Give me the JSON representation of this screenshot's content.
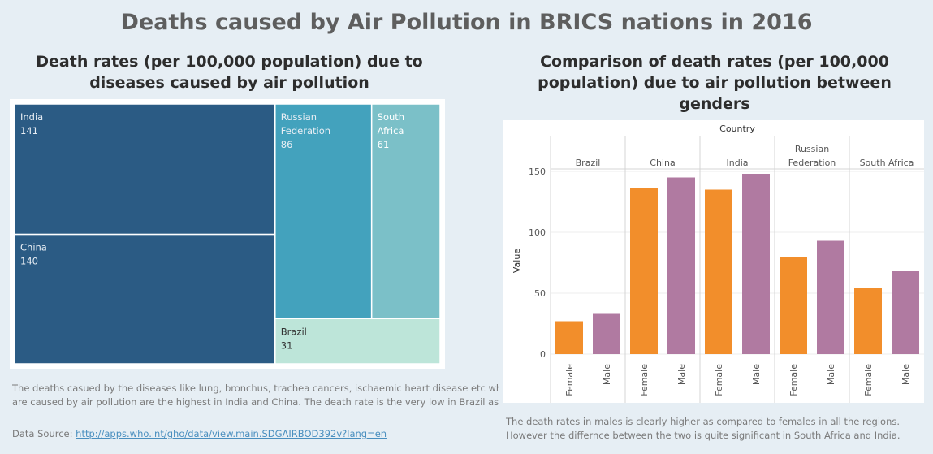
{
  "page": {
    "title": "Deaths caused by Air Pollution in BRICS nations in 2016"
  },
  "left": {
    "title_line1": "Death rates (per 100,000 population) due to",
    "title_line2": "diseases caused by air pollution",
    "note_line1": "The deaths casued by the diseases like lung, bronchus, trachea cancers, ischaemic heart disease etc which",
    "note_line2": "are caused by air pollution are the highest in India and China. The death rate is the very low in Brazil as c..",
    "source_label": "Data Source: ",
    "source_link": "http://apps.who.int/gho/data/view.main.SDGAIRBOD392v?lang=en"
  },
  "right": {
    "title_line1": "Comparison of death rates (per 100,000",
    "title_line2": "population) due to air pollution between",
    "title_line3": "genders",
    "note_line1": "The death rates in males is clearly higher as compared to females in all the regions.",
    "note_line2": "However the differnce between the two is quite significant in South Africa and India."
  },
  "colors": {
    "india": "#2b5b84",
    "china": "#2b5b84",
    "russia": "#43a2bd",
    "south_africa": "#7bc0c8",
    "brazil": "#bde5d9",
    "female": "#f28e2b",
    "male": "#b07aa1"
  },
  "chart_data": [
    {
      "type": "treemap",
      "items": [
        {
          "key": "india",
          "label": [
            "India"
          ],
          "value": 141
        },
        {
          "key": "china",
          "label": [
            "China"
          ],
          "value": 140
        },
        {
          "key": "russia",
          "label": [
            "Russian",
            "Federation"
          ],
          "value": 86
        },
        {
          "key": "south_africa",
          "label": [
            "South",
            "Africa"
          ],
          "value": 61
        },
        {
          "key": "brazil",
          "label": [
            "Brazil"
          ],
          "value": 31
        }
      ]
    },
    {
      "type": "bar",
      "column_header": "Country",
      "ylabel": "Value",
      "ylim": [
        0,
        160
      ],
      "yticks": [
        0,
        50,
        100,
        150
      ],
      "categories": [
        "Female",
        "Male"
      ],
      "groups": [
        {
          "name": [
            "Brazil"
          ],
          "values": [
            27,
            33
          ]
        },
        {
          "name": [
            "China"
          ],
          "values": [
            136,
            145
          ]
        },
        {
          "name": [
            "India"
          ],
          "values": [
            135,
            148
          ]
        },
        {
          "name": [
            "Russian",
            "Federation"
          ],
          "values": [
            80,
            93
          ]
        },
        {
          "name": [
            "South Africa"
          ],
          "values": [
            54,
            68
          ]
        }
      ]
    }
  ]
}
